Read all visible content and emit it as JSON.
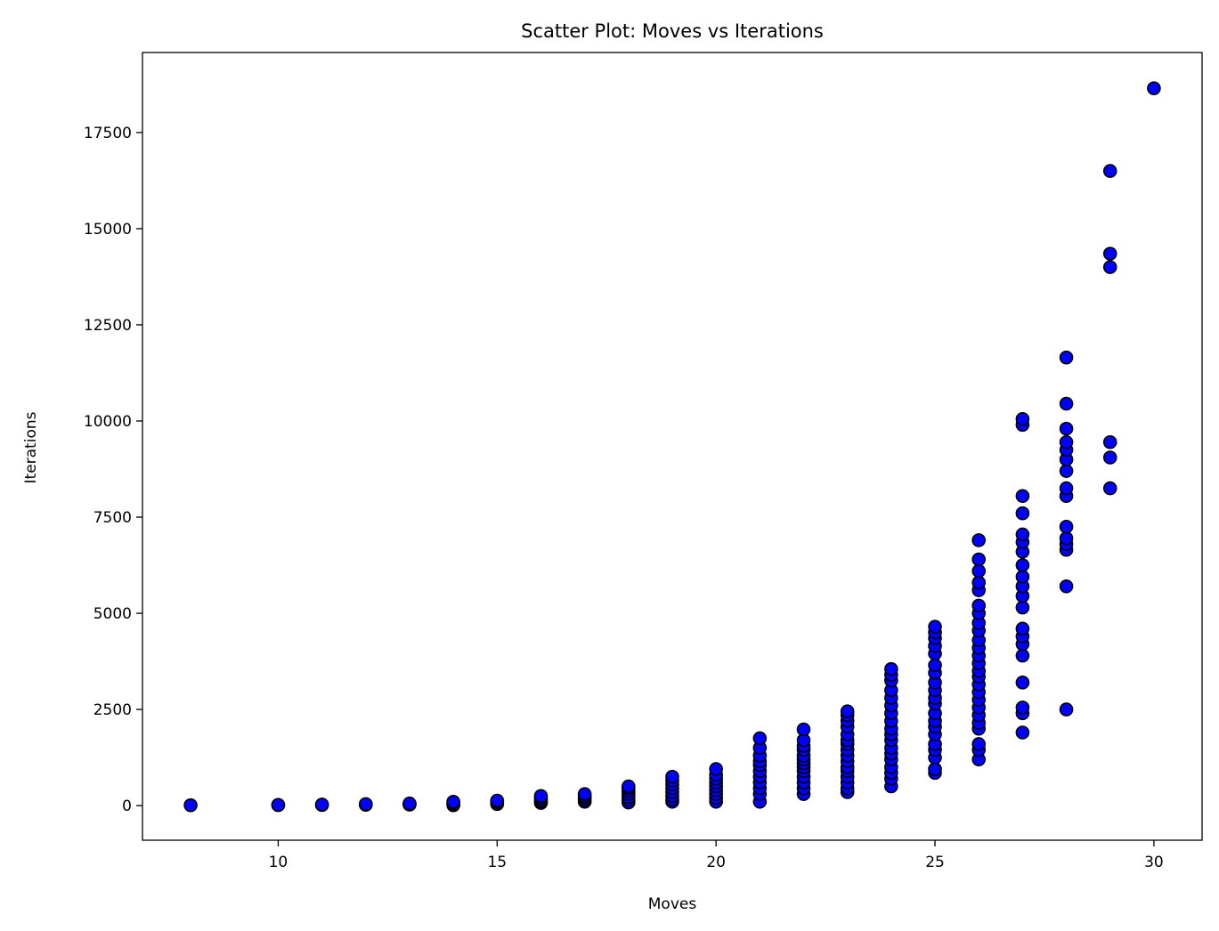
{
  "chart_data": {
    "type": "scatter",
    "title": "Scatter Plot: Moves vs Iterations",
    "xlabel": "Moves",
    "ylabel": "Iterations",
    "xlim": [
      6.9,
      31.1
    ],
    "ylim": [
      -900,
      19580
    ],
    "xticks": [
      10,
      15,
      20,
      25,
      30
    ],
    "yticks": [
      0,
      2500,
      5000,
      7500,
      10000,
      12500,
      15000,
      17500
    ],
    "grid": false,
    "legend": "none",
    "marker_color": "#0000ff",
    "marker_edge_color": "#000000",
    "points": [
      [
        8,
        10
      ],
      [
        10,
        12
      ],
      [
        10,
        20
      ],
      [
        11,
        15
      ],
      [
        11,
        28
      ],
      [
        12,
        20
      ],
      [
        12,
        40
      ],
      [
        13,
        25
      ],
      [
        13,
        40
      ],
      [
        13,
        55
      ],
      [
        14,
        10
      ],
      [
        14,
        40
      ],
      [
        14,
        70
      ],
      [
        14,
        100
      ],
      [
        15,
        40
      ],
      [
        15,
        70
      ],
      [
        15,
        100
      ],
      [
        15,
        130
      ],
      [
        16,
        70
      ],
      [
        16,
        110
      ],
      [
        16,
        150
      ],
      [
        16,
        200
      ],
      [
        16,
        250
      ],
      [
        17,
        100
      ],
      [
        17,
        150
      ],
      [
        17,
        200
      ],
      [
        17,
        250
      ],
      [
        17,
        300
      ],
      [
        18,
        80
      ],
      [
        18,
        150
      ],
      [
        18,
        220
      ],
      [
        18,
        300
      ],
      [
        18,
        380
      ],
      [
        18,
        450
      ],
      [
        18,
        500
      ],
      [
        19,
        100
      ],
      [
        19,
        160
      ],
      [
        19,
        250
      ],
      [
        19,
        350
      ],
      [
        19,
        450
      ],
      [
        19,
        550
      ],
      [
        19,
        650
      ],
      [
        19,
        750
      ],
      [
        20,
        100
      ],
      [
        20,
        200
      ],
      [
        20,
        300
      ],
      [
        20,
        400
      ],
      [
        20,
        500
      ],
      [
        20,
        600
      ],
      [
        20,
        700
      ],
      [
        20,
        800
      ],
      [
        20,
        950
      ],
      [
        21,
        100
      ],
      [
        21,
        300
      ],
      [
        21,
        450
      ],
      [
        21,
        600
      ],
      [
        21,
        750
      ],
      [
        21,
        900
      ],
      [
        21,
        1050
      ],
      [
        21,
        1150
      ],
      [
        21,
        1300
      ],
      [
        21,
        1500
      ],
      [
        21,
        1750
      ],
      [
        22,
        300
      ],
      [
        22,
        450
      ],
      [
        22,
        600
      ],
      [
        22,
        750
      ],
      [
        22,
        900
      ],
      [
        22,
        1000
      ],
      [
        22,
        1100
      ],
      [
        22,
        1200
      ],
      [
        22,
        1300
      ],
      [
        22,
        1450
      ],
      [
        22,
        1550
      ],
      [
        22,
        1700
      ],
      [
        22,
        1980
      ],
      [
        23,
        350
      ],
      [
        23,
        450
      ],
      [
        23,
        600
      ],
      [
        23,
        750
      ],
      [
        23,
        900
      ],
      [
        23,
        1000
      ],
      [
        23,
        1150
      ],
      [
        23,
        1300
      ],
      [
        23,
        1450
      ],
      [
        23,
        1600
      ],
      [
        23,
        1700
      ],
      [
        23,
        1850
      ],
      [
        23,
        2050
      ],
      [
        23,
        2200
      ],
      [
        23,
        2350
      ],
      [
        23,
        2450
      ],
      [
        24,
        500
      ],
      [
        24,
        700
      ],
      [
        24,
        850
      ],
      [
        24,
        1000
      ],
      [
        24,
        1200
      ],
      [
        24,
        1350
      ],
      [
        24,
        1500
      ],
      [
        24,
        1700
      ],
      [
        24,
        1850
      ],
      [
        24,
        2000
      ],
      [
        24,
        2200
      ],
      [
        24,
        2400
      ],
      [
        24,
        2600
      ],
      [
        24,
        2800
      ],
      [
        24,
        3000
      ],
      [
        24,
        3250
      ],
      [
        24,
        3400
      ],
      [
        24,
        3550
      ],
      [
        25,
        850
      ],
      [
        25,
        950
      ],
      [
        25,
        1250
      ],
      [
        25,
        1450
      ],
      [
        25,
        1600
      ],
      [
        25,
        1850
      ],
      [
        25,
        2050
      ],
      [
        25,
        2200
      ],
      [
        25,
        2400
      ],
      [
        25,
        2650
      ],
      [
        25,
        2800
      ],
      [
        25,
        3000
      ],
      [
        25,
        3200
      ],
      [
        25,
        3450
      ],
      [
        25,
        3650
      ],
      [
        25,
        3950
      ],
      [
        25,
        4150
      ],
      [
        25,
        4350
      ],
      [
        25,
        4500
      ],
      [
        25,
        4650
      ],
      [
        26,
        1200
      ],
      [
        26,
        1450
      ],
      [
        26,
        1600
      ],
      [
        26,
        2000
      ],
      [
        26,
        2150
      ],
      [
        26,
        2350
      ],
      [
        26,
        2550
      ],
      [
        26,
        2750
      ],
      [
        26,
        2950
      ],
      [
        26,
        3150
      ],
      [
        26,
        3350
      ],
      [
        26,
        3500
      ],
      [
        26,
        3700
      ],
      [
        26,
        3900
      ],
      [
        26,
        4100
      ],
      [
        26,
        4300
      ],
      [
        26,
        4550
      ],
      [
        26,
        4750
      ],
      [
        26,
        5000
      ],
      [
        26,
        5200
      ],
      [
        26,
        5600
      ],
      [
        26,
        5800
      ],
      [
        26,
        6100
      ],
      [
        26,
        6400
      ],
      [
        26,
        6900
      ],
      [
        27,
        1900
      ],
      [
        27,
        2400
      ],
      [
        27,
        2550
      ],
      [
        27,
        3200
      ],
      [
        27,
        3900
      ],
      [
        27,
        4200
      ],
      [
        27,
        4400
      ],
      [
        27,
        4600
      ],
      [
        27,
        5150
      ],
      [
        27,
        5450
      ],
      [
        27,
        5700
      ],
      [
        27,
        5950
      ],
      [
        27,
        6250
      ],
      [
        27,
        6600
      ],
      [
        27,
        6850
      ],
      [
        27,
        7050
      ],
      [
        27,
        7600
      ],
      [
        27,
        8050
      ],
      [
        27,
        9900
      ],
      [
        27,
        10050
      ],
      [
        28,
        2500
      ],
      [
        28,
        5700
      ],
      [
        28,
        6650
      ],
      [
        28,
        6800
      ],
      [
        28,
        6950
      ],
      [
        28,
        7250
      ],
      [
        28,
        8050
      ],
      [
        28,
        8250
      ],
      [
        28,
        8700
      ],
      [
        28,
        9000
      ],
      [
        28,
        9250
      ],
      [
        28,
        9450
      ],
      [
        28,
        9800
      ],
      [
        28,
        10450
      ],
      [
        28,
        11650
      ],
      [
        29,
        8250
      ],
      [
        29,
        9050
      ],
      [
        29,
        9450
      ],
      [
        29,
        14000
      ],
      [
        29,
        14350
      ],
      [
        29,
        16500
      ],
      [
        30,
        18650
      ]
    ]
  }
}
